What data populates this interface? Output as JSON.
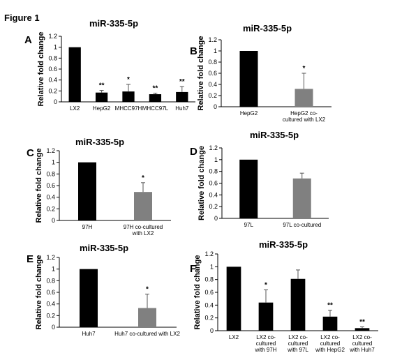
{
  "figure_title": "Figure 1",
  "chart_data": [
    {
      "panel": "A",
      "type": "bar",
      "title": "miR-335-5p",
      "ylabel": "Relative fold change",
      "xlabel": "",
      "ylim": [
        0,
        1.2
      ],
      "yticks": [
        "0",
        "0.2",
        "0.4",
        "0.6",
        "0.8",
        "1",
        "1.2"
      ],
      "grid": false,
      "categories": [
        [
          "LX2"
        ],
        [
          "HepG2"
        ],
        [
          "MHCC97H"
        ],
        [
          "MHCC97L"
        ],
        [
          "Huh7"
        ]
      ],
      "values": [
        1.0,
        0.17,
        0.19,
        0.14,
        0.18
      ],
      "errors": [
        0,
        0.04,
        0.13,
        0.02,
        0.1
      ],
      "significance": [
        "",
        "**",
        "*",
        "**",
        "**"
      ],
      "colors": [
        "#000000",
        "#000000",
        "#000000",
        "#000000",
        "#000000"
      ]
    },
    {
      "panel": "B",
      "type": "bar",
      "title": "miR-335-5p",
      "ylabel": "Relative fold change",
      "xlabel": "",
      "ylim": [
        0,
        1.2
      ],
      "yticks": [
        "0",
        "0.2",
        "0.4",
        "0.6",
        "0.8",
        "1",
        "1.2"
      ],
      "grid": false,
      "categories": [
        [
          "HepG2"
        ],
        [
          "HepG2 co-",
          "cultured with LX2"
        ]
      ],
      "values": [
        1.0,
        0.32
      ],
      "errors": [
        0,
        0.28
      ],
      "significance": [
        "",
        "*"
      ],
      "colors": [
        "#000000",
        "#808080"
      ]
    },
    {
      "panel": "C",
      "type": "bar",
      "title": "miR-335-5p",
      "ylabel": "Relative fold change",
      "xlabel": "",
      "ylim": [
        0,
        1.2
      ],
      "yticks": [
        "0",
        "0.2",
        "0.4",
        "0.6",
        "0.8",
        "1",
        "1.2"
      ],
      "grid": false,
      "categories": [
        [
          "97H"
        ],
        [
          "97H co-cultured",
          "with LX2"
        ]
      ],
      "values": [
        1.0,
        0.49
      ],
      "errors": [
        0,
        0.16
      ],
      "significance": [
        "",
        "*"
      ],
      "colors": [
        "#000000",
        "#808080"
      ]
    },
    {
      "panel": "D",
      "type": "bar",
      "title": "miR-335-5p",
      "ylabel": "Relative fold change",
      "xlabel": "",
      "ylim": [
        0,
        1.2
      ],
      "yticks": [
        "0",
        "0.2",
        "0.4",
        "0.6",
        "0.8",
        "1",
        "1.2"
      ],
      "grid": false,
      "categories": [
        [
          "97L"
        ],
        [
          "97L co-cultured"
        ]
      ],
      "values": [
        1.0,
        0.68
      ],
      "errors": [
        0,
        0.09
      ],
      "significance": [
        "",
        ""
      ],
      "colors": [
        "#000000",
        "#808080"
      ]
    },
    {
      "panel": "E",
      "type": "bar",
      "title": "miR-335-5p",
      "ylabel": "Relative fold change",
      "xlabel": "",
      "ylim": [
        0,
        1.2
      ],
      "yticks": [
        "0",
        "0.2",
        "0.4",
        "0.6",
        "0.8",
        "1",
        "1.2"
      ],
      "grid": false,
      "categories": [
        [
          "Huh7"
        ],
        [
          "Huh7 co-cultured with LX2"
        ]
      ],
      "values": [
        1.0,
        0.33
      ],
      "errors": [
        0,
        0.24
      ],
      "significance": [
        "",
        "*"
      ],
      "colors": [
        "#000000",
        "#808080"
      ]
    },
    {
      "panel": "F",
      "type": "bar",
      "title": "miR-335-5p",
      "ylabel": "Relative fold change",
      "xlabel": "",
      "ylim": [
        0,
        1.2
      ],
      "yticks": [
        "0",
        "0.2",
        "0.4",
        "0.6",
        "0.8",
        "1",
        "1.2"
      ],
      "grid": false,
      "categories": [
        [
          "LX2"
        ],
        [
          "LX2 co-",
          "cultured",
          "with 97H"
        ],
        [
          "LX2 co-",
          "cultured",
          "with 97L"
        ],
        [
          "LX2 co-",
          "cultured",
          "with HepG2"
        ],
        [
          "LX2 co-",
          "cultured",
          "with Huh7"
        ]
      ],
      "values": [
        1.0,
        0.44,
        0.81,
        0.22,
        0.04
      ],
      "errors": [
        0,
        0.2,
        0.14,
        0.1,
        0.02
      ],
      "significance": [
        "",
        "*",
        "",
        "**",
        "**"
      ],
      "colors": [
        "#000000",
        "#000000",
        "#000000",
        "#000000",
        "#000000"
      ]
    }
  ]
}
